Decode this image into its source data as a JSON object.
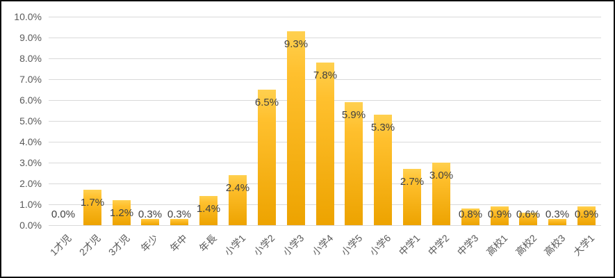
{
  "chart_data": {
    "type": "bar",
    "title": "",
    "xlabel": "",
    "ylabel": "",
    "categories": [
      "1才児",
      "2才児",
      "3才児",
      "年少",
      "年中",
      "年長",
      "小学1",
      "小学2",
      "小学3",
      "小学4",
      "小学5",
      "小学6",
      "中学1",
      "中学2",
      "中学3",
      "高校1",
      "高校2",
      "高校3",
      "大学1"
    ],
    "values": [
      0.0,
      1.7,
      1.2,
      0.3,
      0.3,
      1.4,
      2.4,
      6.5,
      9.3,
      7.8,
      5.9,
      5.3,
      2.7,
      3.0,
      0.8,
      0.9,
      0.6,
      0.3,
      0.9
    ],
    "value_labels": [
      "0.0%",
      "1.7%",
      "1.2%",
      "0.3%",
      "0.3%",
      "1.4%",
      "2.4%",
      "6.5%",
      "9.3%",
      "7.8%",
      "5.9%",
      "5.3%",
      "2.7%",
      "3.0%",
      "0.8%",
      "0.9%",
      "0.6%",
      "0.3%",
      "0.9%"
    ],
    "ylim": [
      0,
      10
    ],
    "ytick_step": 1,
    "ytick_labels": [
      "0.0%",
      "1.0%",
      "2.0%",
      "3.0%",
      "4.0%",
      "5.0%",
      "6.0%",
      "7.0%",
      "8.0%",
      "9.0%",
      "10.0%"
    ],
    "grid": true,
    "legend": "none",
    "colors": {
      "bar_gradient_top": "#ffd04f",
      "bar_gradient_mid": "#ffc02e",
      "bar_gradient_bottom": "#eda300",
      "gridline": "#d9d9d9",
      "axis_text": "#595959",
      "data_label_text": "#404040",
      "background": "#ffffff",
      "frame_border": "#0d0d0d"
    }
  }
}
